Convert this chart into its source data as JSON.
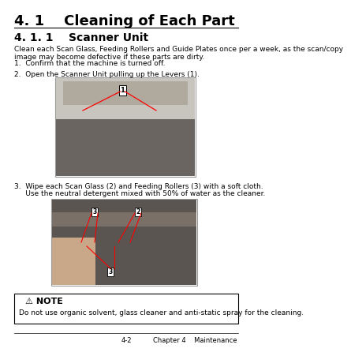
{
  "title": "4. 1    Cleaning of Each Part",
  "subtitle": "4. 1. 1    Scanner Unit",
  "body_text": "Clean each Scan Glass, Feeding Rollers and Guide Plates once per a week, as the scan/copy\nimage may become defective if these parts are dirty.",
  "step1": "1.  Confirm that the machine is turned off.",
  "step2": "2.  Open the Scanner Unit pulling up the Levers (1).",
  "step3_line1": "3.  Wipe each Scan Glass (2) and Feeding Rollers (3) with a soft cloth.",
  "step3_line2": "     Use the neutral detergent mixed with 50% of water as the cleaner.",
  "note_title": "⚠ NOTE",
  "note_text": "Do not use organic solvent, glass cleaner and anti-static spray for the cleaning.",
  "footer_left": "4-2",
  "footer_right": "Chapter 4    Maintenance",
  "bg_color": "#ffffff",
  "text_color": "#000000",
  "img1_bg": "#c8c4be",
  "img1_body": "#6a6560",
  "img1_top": "#b0aa9e",
  "img2_bg": "#5a5550",
  "img2_mid": "#7a7068",
  "img2_hand": "#c8a888",
  "note_bg": "#ffffff",
  "note_border": "#000000",
  "title_fontsize": 13,
  "subtitle_fontsize": 10,
  "body_fontsize": 6.5,
  "step_fontsize": 6.5,
  "note_title_fontsize": 8,
  "note_text_fontsize": 6.5,
  "footer_fontsize": 6
}
